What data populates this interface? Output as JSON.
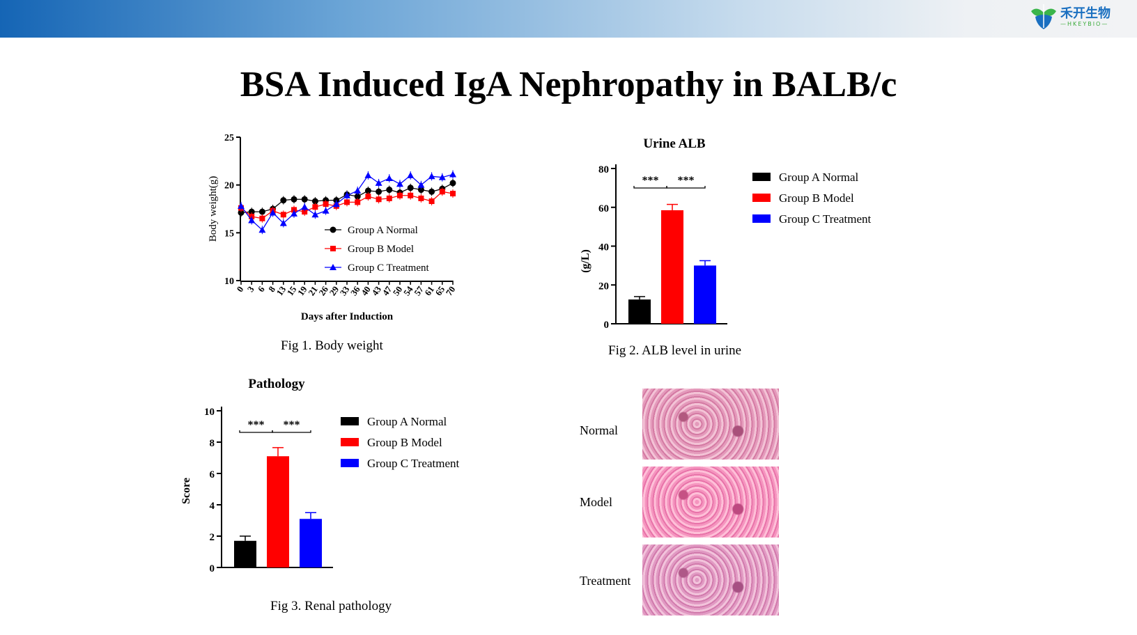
{
  "header": {
    "logo_text": "禾开生物",
    "logo_sub": "—HKEYBIO—",
    "banner_colors": [
      "#1565b5",
      "#f2f3f5"
    ]
  },
  "title": "BSA Induced IgA Nephropathy in BALB/c",
  "legend": [
    "Group A Normal",
    "Group B  Model",
    "Group C Treatment"
  ],
  "colors": {
    "A": "#000000",
    "B": "#ff0000",
    "C": "#0000ff"
  },
  "chart_data": [
    {
      "type": "line",
      "ylabel": "Body weight(g)",
      "xlabel": "Days after Induction",
      "caption": "Fig 1. Body weight",
      "ylim": [
        10,
        25
      ],
      "yticks": [
        10,
        15,
        20,
        25
      ],
      "x": [
        0,
        3,
        6,
        8,
        13,
        15,
        19,
        21,
        26,
        29,
        33,
        36,
        40,
        43,
        47,
        50,
        54,
        57,
        61,
        65,
        70
      ],
      "legend_placement": "bottom-right",
      "series": [
        {
          "name": "Group A Normal",
          "values": [
            17.1,
            17.2,
            17.2,
            17.5,
            18.4,
            18.5,
            18.5,
            18.3,
            18.4,
            18.4,
            19.0,
            18.8,
            19.4,
            19.3,
            19.5,
            19.2,
            19.7,
            19.5,
            19.3,
            19.6,
            20.2
          ]
        },
        {
          "name": "Group B  Model",
          "values": [
            17.6,
            16.7,
            16.5,
            17.3,
            16.9,
            17.4,
            17.2,
            17.7,
            18.0,
            17.8,
            18.2,
            18.2,
            18.8,
            18.5,
            18.6,
            18.9,
            18.9,
            18.6,
            18.3,
            19.3,
            19.1
          ]
        },
        {
          "name": "Group C Treatment",
          "values": [
            17.8,
            16.3,
            15.3,
            17.1,
            16.0,
            17.0,
            17.7,
            16.9,
            17.3,
            18.0,
            18.9,
            19.4,
            21.0,
            20.2,
            20.7,
            20.1,
            21.0,
            20.0,
            20.9,
            20.8,
            21.1
          ]
        }
      ]
    },
    {
      "type": "bar",
      "title": "Urine ALB",
      "ylabel": "(g/L)",
      "caption": "Fig 2. ALB level in urine",
      "ylim": [
        0,
        80
      ],
      "yticks": [
        0,
        20,
        40,
        60,
        80
      ],
      "categories": [
        "Group A Normal",
        "Group B  Model",
        "Group C Treatment"
      ],
      "values": [
        12.5,
        58.5,
        30
      ],
      "errors": [
        1.5,
        3,
        2.5
      ],
      "significance": [
        "***",
        "***"
      ],
      "legend_placement": "right"
    },
    {
      "type": "bar",
      "title": "Pathology",
      "ylabel": "Score",
      "caption": "Fig 3. Renal pathology",
      "ylim": [
        0,
        10
      ],
      "yticks": [
        0,
        2,
        4,
        6,
        8,
        10
      ],
      "categories": [
        "Group A Normal",
        "Group B  Model",
        "Group C Treatment"
      ],
      "values": [
        1.7,
        7.1,
        3.1
      ],
      "errors": [
        0.3,
        0.55,
        0.4
      ],
      "significance": [
        "***",
        "***"
      ],
      "legend_placement": "right"
    }
  ],
  "histology": [
    {
      "label": "Normal"
    },
    {
      "label": "Model"
    },
    {
      "label": "Treatment"
    }
  ]
}
